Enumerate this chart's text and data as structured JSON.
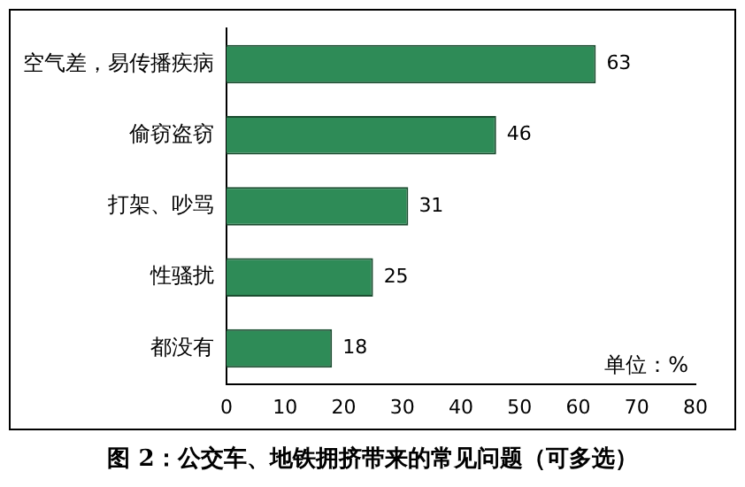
{
  "chart_data": {
    "type": "bar",
    "orientation": "horizontal",
    "title": "图 2：公交车、地铁拥挤带来的常见问题（可多选）",
    "categories": [
      "空气差，易传播疾病",
      "偷窃盗窃",
      "打架、吵骂",
      "性骚扰",
      "都没有"
    ],
    "values": [
      63,
      46,
      31,
      25,
      18
    ],
    "color": "#2e8b57",
    "xlim": [
      0,
      80
    ],
    "xticks": [
      0,
      10,
      20,
      30,
      40,
      50,
      60,
      70,
      80
    ],
    "grid": false,
    "legend": false,
    "data_labels": true,
    "annotations": [
      "单位：%"
    ]
  }
}
